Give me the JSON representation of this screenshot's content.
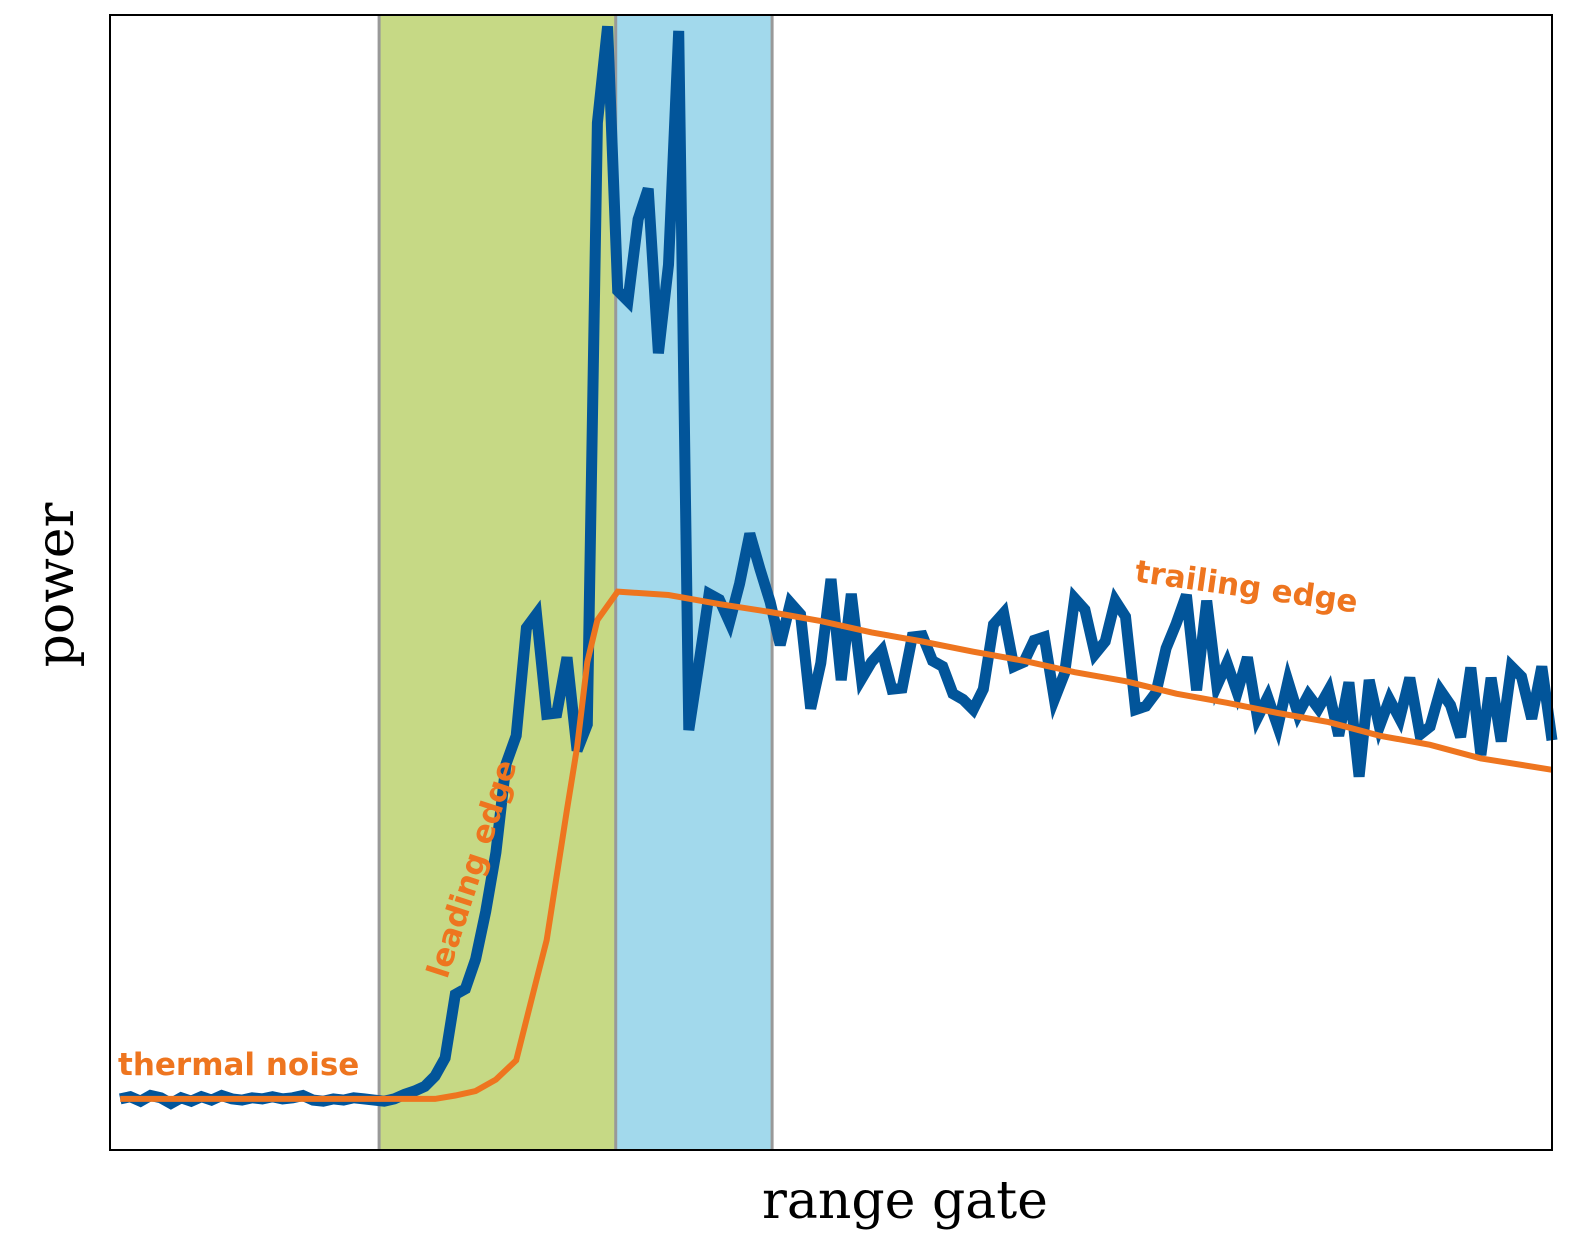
{
  "chart_data": {
    "type": "line",
    "xlabel": "range gate",
    "ylabel": "power",
    "xlim": [
      0,
      142
    ],
    "ylim": [
      0,
      1
    ],
    "x_ticks": [],
    "y_ticks": [],
    "grid": false,
    "regions": [
      {
        "name": "leading-edge-region",
        "x": [
          26.5,
          49.8
        ],
        "color": "#c6d985"
      },
      {
        "name": "peak-region",
        "x": [
          49.8,
          65.2
        ],
        "color": "#a2d9ec"
      }
    ],
    "boundaries": [
      26.5,
      49.8,
      65.2
    ],
    "boundary_color": "#999999",
    "series": [
      {
        "role": "waveform",
        "color": "#02559a",
        "x": [
          1,
          2,
          3,
          4,
          5,
          6,
          7,
          8,
          9,
          10,
          11,
          12,
          13,
          14,
          15,
          16,
          17,
          18,
          19,
          20,
          21,
          22,
          23,
          24,
          25,
          26,
          27,
          28,
          29,
          30,
          31,
          32,
          33,
          34,
          35,
          36,
          37,
          38,
          39,
          40,
          41,
          42,
          43,
          44,
          45,
          46,
          47,
          48,
          49,
          50,
          51,
          52,
          53,
          54,
          55,
          56,
          57,
          58,
          59,
          60,
          61,
          62,
          63,
          64,
          65,
          66,
          67,
          68,
          69,
          70,
          71,
          72,
          73,
          74,
          75,
          76,
          77,
          78,
          79,
          80,
          81,
          82,
          83,
          84,
          85,
          86,
          87,
          88,
          89,
          90,
          91,
          92,
          93,
          94,
          95,
          96,
          97,
          98,
          99,
          100,
          101,
          102,
          103,
          104,
          105,
          106,
          107,
          108,
          109,
          110,
          111,
          112,
          113,
          114,
          115,
          116,
          117,
          118,
          119,
          120,
          121,
          122,
          123,
          124,
          125,
          126,
          127,
          128,
          129,
          130,
          131,
          132,
          133,
          134,
          135,
          136,
          137,
          138,
          139,
          140,
          141,
          142
        ],
        "values": [
          0.045,
          0.047,
          0.043,
          0.048,
          0.046,
          0.041,
          0.046,
          0.043,
          0.047,
          0.044,
          0.048,
          0.045,
          0.044,
          0.046,
          0.045,
          0.047,
          0.045,
          0.046,
          0.048,
          0.044,
          0.043,
          0.045,
          0.044,
          0.046,
          0.045,
          0.044,
          0.043,
          0.045,
          0.049,
          0.052,
          0.056,
          0.065,
          0.081,
          0.137,
          0.142,
          0.168,
          0.21,
          0.262,
          0.34,
          0.365,
          0.46,
          0.472,
          0.384,
          0.385,
          0.434,
          0.352,
          0.375,
          0.905,
          0.99,
          0.757,
          0.748,
          0.82,
          0.847,
          0.702,
          0.78,
          0.986,
          0.37,
          0.429,
          0.49,
          0.485,
          0.465,
          0.499,
          0.543,
          0.512,
          0.483,
          0.445,
          0.482,
          0.472,
          0.389,
          0.429,
          0.503,
          0.414,
          0.49,
          0.415,
          0.43,
          0.44,
          0.406,
          0.407,
          0.452,
          0.453,
          0.431,
          0.426,
          0.402,
          0.397,
          0.388,
          0.406,
          0.463,
          0.473,
          0.426,
          0.43,
          0.449,
          0.452,
          0.397,
          0.42,
          0.486,
          0.476,
          0.437,
          0.448,
          0.484,
          0.47,
          0.388,
          0.391,
          0.403,
          0.442,
          0.464,
          0.489,
          0.405,
          0.484,
          0.409,
          0.429,
          0.403,
          0.434,
          0.381,
          0.399,
          0.373,
          0.413,
          0.384,
          0.401,
          0.389,
          0.405,
          0.365,
          0.412,
          0.329,
          0.414,
          0.373,
          0.397,
          0.38,
          0.416,
          0.366,
          0.373,
          0.405,
          0.392,
          0.364,
          0.425,
          0.348,
          0.416,
          0.36,
          0.426,
          0.417,
          0.38,
          0.426,
          0.361
        ]
      },
      {
        "role": "model",
        "color": "#ee751f",
        "x": [
          1,
          10,
          20,
          26,
          27,
          30,
          32,
          34,
          36,
          38,
          40,
          42,
          43,
          45,
          46,
          47,
          48,
          50,
          55,
          60,
          65,
          70,
          75,
          80,
          85,
          90,
          95,
          100,
          105,
          110,
          115,
          120,
          125,
          130,
          135,
          142
        ],
        "values": [
          0.045,
          0.045,
          0.045,
          0.045,
          0.045,
          0.045,
          0.045,
          0.048,
          0.052,
          0.062,
          0.079,
          0.15,
          0.185,
          0.3,
          0.355,
          0.43,
          0.467,
          0.492,
          0.489,
          0.481,
          0.474,
          0.466,
          0.456,
          0.448,
          0.439,
          0.431,
          0.421,
          0.413,
          0.402,
          0.394,
          0.385,
          0.377,
          0.365,
          0.357,
          0.345,
          0.335
        ]
      }
    ],
    "annotations": [
      {
        "text": "thermal noise",
        "color": "#ee751f"
      },
      {
        "text": "leading edge",
        "color": "#ee751f"
      },
      {
        "text": "trailing edge",
        "color": "#ee751f"
      }
    ]
  }
}
